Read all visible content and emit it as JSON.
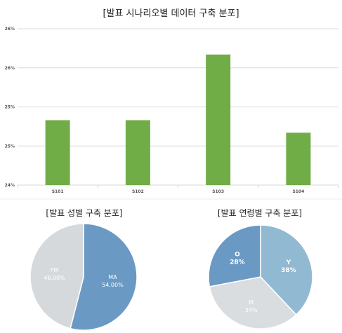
{
  "titles": {
    "main": "[발표 시나리오별 데이터 구축 분포]",
    "gender": "[발표 성별 구축 분포]",
    "age": "[발표 연령별 구축 분포]"
  },
  "colors": {
    "bar": "#70ad47",
    "grid": "#d9d9d9",
    "pie_blue": "#6a99c3",
    "pie_gray": "#d6d9dc",
    "pie_lightblue": "#92b9d2",
    "pie_lightgray": "#d9dde0"
  },
  "chart_data": [
    {
      "type": "bar",
      "title": "[발표 시나리오별 데이터 구축 분포]",
      "categories": [
        "S101",
        "S102",
        "S103",
        "S104"
      ],
      "values": [
        24.83,
        24.83,
        25.67,
        24.67
      ],
      "ylim": [
        24.0,
        26.0
      ],
      "y_tick_values": [
        24.0,
        24.5,
        25.0,
        25.5,
        26.0
      ],
      "y_tick_labels": [
        "24%",
        "25%",
        "25%",
        "26%",
        "26%"
      ],
      "grid": true
    },
    {
      "type": "pie",
      "title": "[발표 성별 구축 분포]",
      "labels": [
        "MA",
        "FM"
      ],
      "values": [
        54.0,
        46.0
      ],
      "value_labels": [
        "54.00%",
        "46.00%"
      ]
    },
    {
      "type": "pie",
      "title": "[발표 연령별 구축 분포]",
      "labels": [
        "Y",
        "M",
        "O"
      ],
      "values": [
        38,
        34,
        28
      ],
      "value_labels": [
        "38%",
        "34%",
        "28%"
      ]
    }
  ]
}
